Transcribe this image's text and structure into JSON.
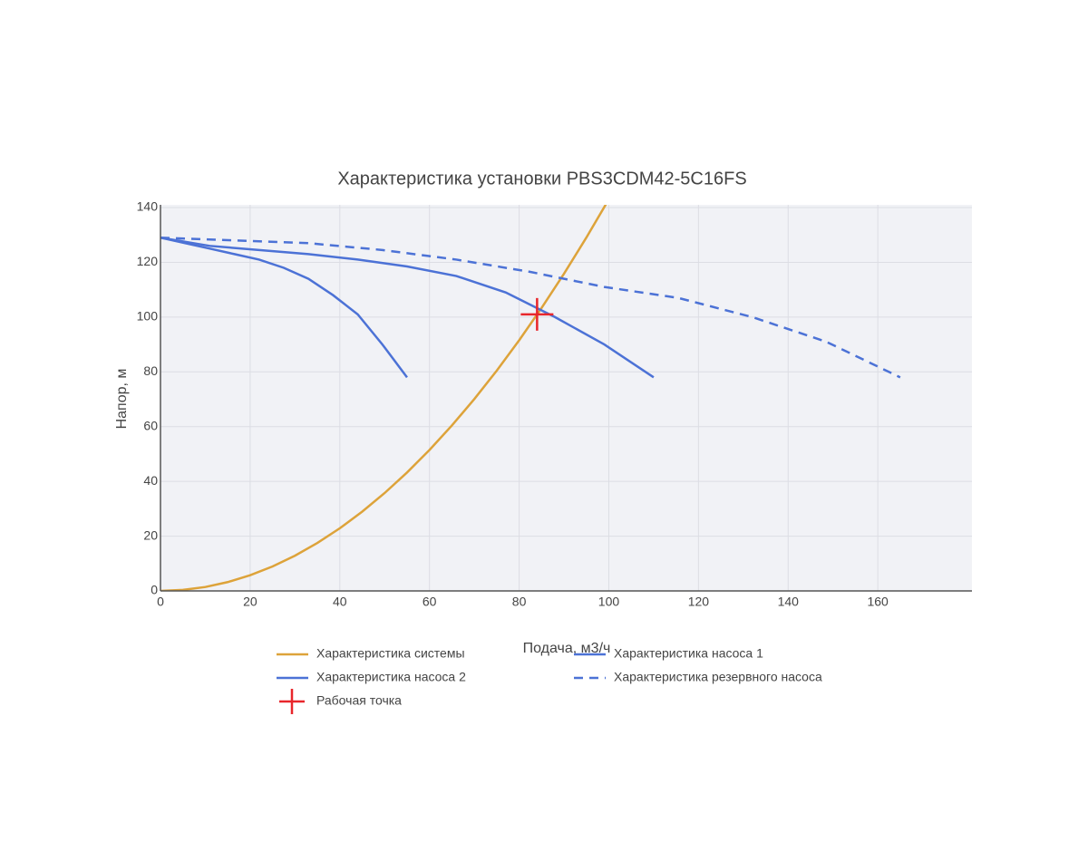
{
  "chart_data": {
    "type": "line",
    "title": "Характеристика установки PBS3CDM42-5C16FS",
    "x_label": "Подача, м3/ч",
    "y_label": "Напор, м",
    "xlim": [
      0,
      181
    ],
    "ylim": [
      0,
      141
    ],
    "xticks": [
      0,
      20,
      40,
      60,
      80,
      100,
      120,
      140,
      160
    ],
    "yticks": [
      0,
      20,
      40,
      60,
      80,
      100,
      120,
      140
    ],
    "grid": true,
    "series": [
      {
        "name": "Характеристика системы",
        "color": "#dda33a",
        "mode": "lines",
        "x": [
          0,
          5,
          10,
          15,
          20,
          25,
          30,
          35,
          40,
          45,
          50,
          55,
          60,
          65,
          70,
          75,
          80,
          85,
          90,
          95,
          100
        ],
        "values": [
          0,
          0.36,
          1.43,
          3.22,
          5.72,
          8.94,
          12.87,
          17.52,
          22.88,
          28.96,
          35.75,
          43.26,
          51.48,
          60.42,
          70.07,
          80.44,
          91.52,
          103.32,
          115.83,
          129.06,
          143
        ]
      },
      {
        "name": "Характеристика насоса 1",
        "color": "#4c72d6",
        "mode": "lines",
        "x": [
          0,
          11,
          22,
          33,
          44,
          55,
          66,
          77,
          88,
          99,
          110
        ],
        "values": [
          129,
          126,
          124.5,
          123,
          121,
          118.5,
          115,
          109,
          100,
          90,
          78
        ]
      },
      {
        "name": "Характеристика насоса 2",
        "color": "#4c72d6",
        "mode": "lines",
        "x": [
          0,
          5.5,
          11,
          16.5,
          22,
          27.5,
          33,
          38.5,
          44,
          49.5,
          55
        ],
        "values": [
          129,
          127,
          125,
          123,
          121,
          118,
          114,
          108,
          101,
          90,
          78
        ]
      },
      {
        "name": "Характеристика резервного насоса",
        "color": "#4c72d6",
        "mode": "lines",
        "dash": "dash",
        "x": [
          0,
          16.5,
          33,
          49.5,
          66,
          82.5,
          99,
          115.5,
          132,
          148.5,
          165
        ],
        "values": [
          129,
          128,
          127,
          124.5,
          121,
          116.5,
          111,
          107,
          100,
          91,
          78
        ]
      },
      {
        "name": "Рабочая точка",
        "color": "#e8262b",
        "mode": "markers",
        "x": [
          84
        ],
        "values": [
          101
        ]
      }
    ]
  }
}
